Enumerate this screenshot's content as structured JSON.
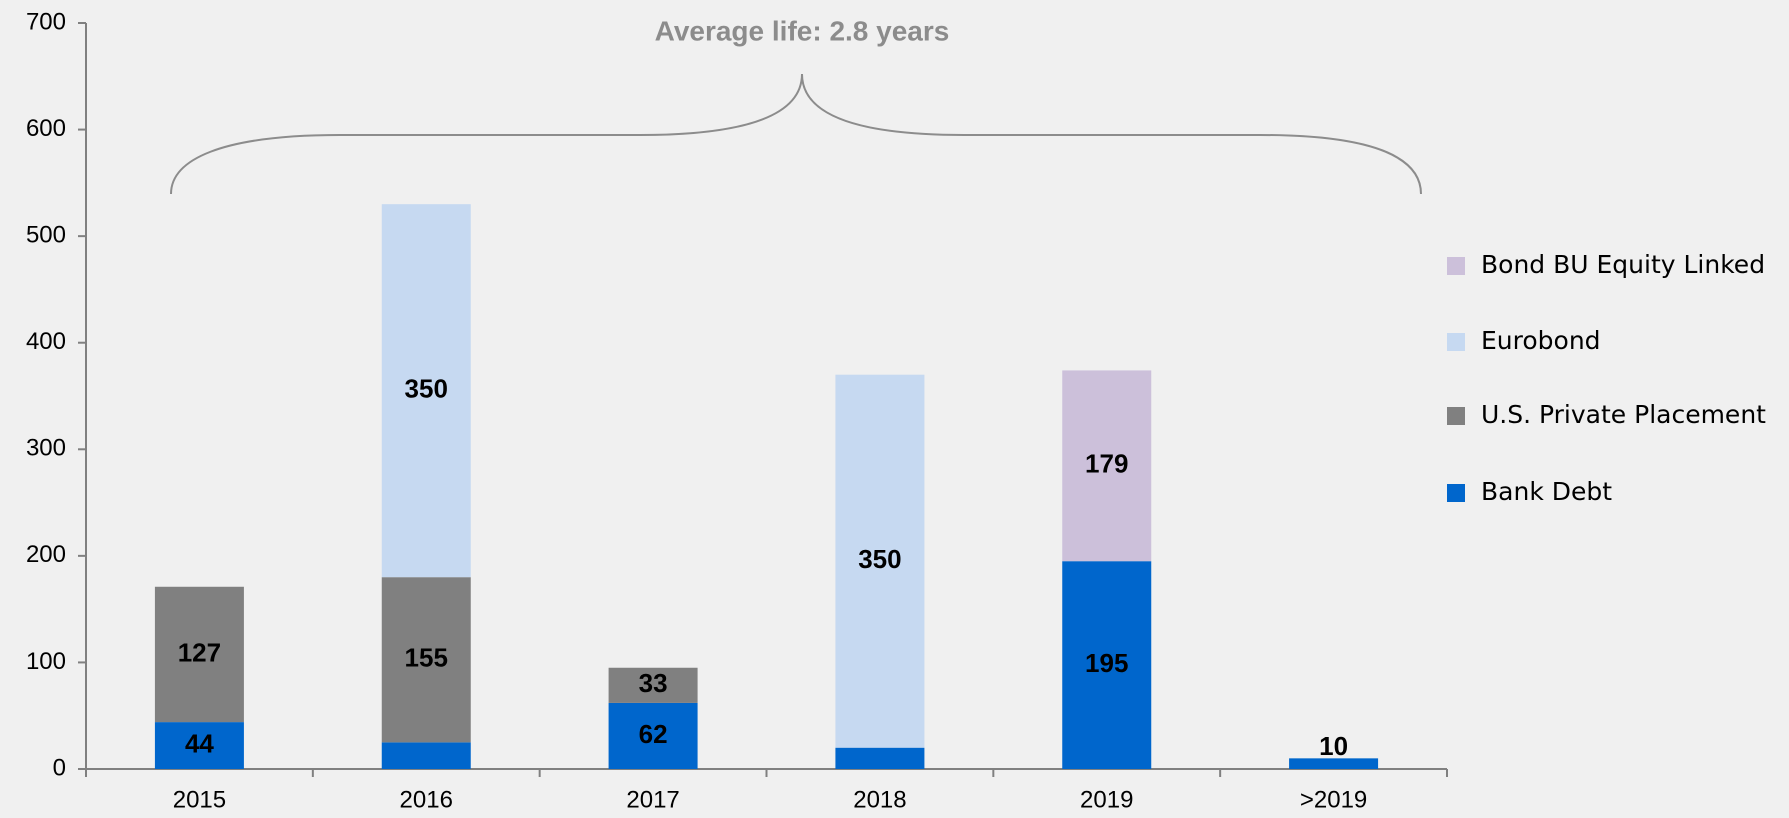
{
  "chart_data": {
    "type": "stacked_bar",
    "annotation": "Average life: 2.8 years",
    "categories": [
      "2015",
      "2016",
      "2017",
      "2018",
      "2019",
      ">2019"
    ],
    "series": [
      {
        "name": "Bank Debt",
        "color": "#0066cc",
        "values": [
          44,
          25,
          62,
          20,
          195,
          10
        ]
      },
      {
        "name": "U.S. Private Placement",
        "color": "#808080",
        "values": [
          127,
          155,
          33,
          null,
          null,
          null
        ]
      },
      {
        "name": "Eurobond",
        "color": "#c6d9f1",
        "values": [
          null,
          350,
          null,
          350,
          null,
          null
        ]
      },
      {
        "name": "Bond BU Equity Linked",
        "color": "#ccc0da",
        "values": [
          null,
          null,
          null,
          null,
          179,
          null
        ]
      }
    ],
    "ylim": [
      0,
      700
    ],
    "yticks": [
      0,
      100,
      200,
      300,
      400,
      500,
      600,
      700
    ],
    "legend": "right"
  }
}
